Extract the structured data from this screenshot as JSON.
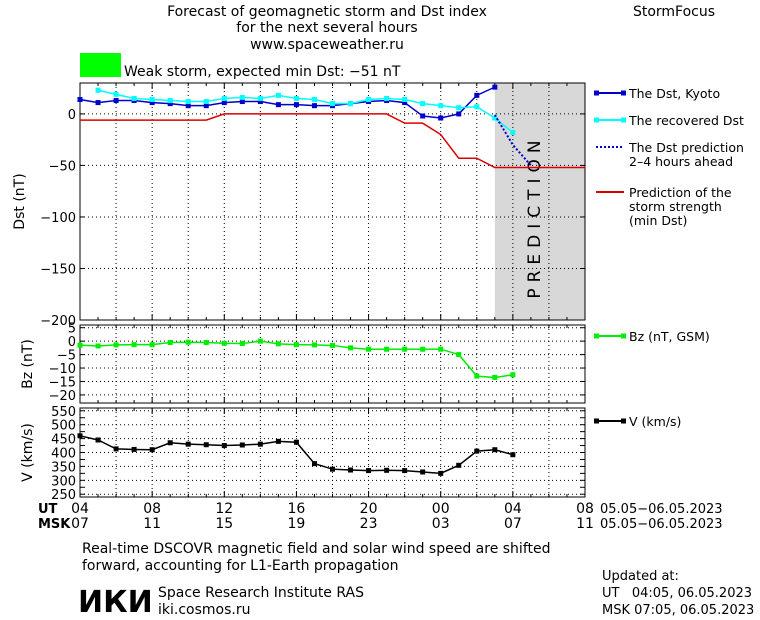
{
  "header": {
    "title_lines": [
      "Forecast of geomagnetic storm and Dst index",
      "for the next several hours",
      "www.spaceweather.ru"
    ],
    "brand": "StormFocus"
  },
  "storm_status": {
    "label": "Weak storm, expected min Dst: −51 nT",
    "color": "#00ff00"
  },
  "prediction_label": "PREDICTION",
  "colors": {
    "dst_kyoto": "#0000cc",
    "dst_recovered": "#00ffff",
    "dst_prediction": "#0000cc",
    "storm_strength": "#dd0000",
    "bz": "#00ee00",
    "v": "#000000",
    "prediction_band": "#d8d8d8"
  },
  "time_axis": {
    "ut_label": "UT",
    "msk_label": "MSK",
    "ut_ticks": [
      "04",
      "08",
      "12",
      "16",
      "20",
      "00",
      "04",
      "08"
    ],
    "msk_ticks": [
      "07",
      "11",
      "15",
      "19",
      "23",
      "03",
      "07",
      "11"
    ],
    "ut_date_range": "05.05−06.05.2023",
    "msk_date_range": "05.05−06.05.2023"
  },
  "chart_data": [
    {
      "type": "line",
      "ylabel": "Dst (nT)",
      "ylim": [
        -200,
        30
      ],
      "yticks": [
        0,
        -50,
        -100,
        -150,
        -200
      ],
      "xlim": [
        0,
        28
      ],
      "prediction_start": 23,
      "series": [
        {
          "name": "The Dst, Kyoto",
          "x": [
            0,
            1,
            2,
            3,
            4,
            5,
            6,
            7,
            8,
            9,
            10,
            11,
            12,
            13,
            14,
            15,
            16,
            17,
            18,
            19,
            20,
            21,
            22,
            23
          ],
          "values": [
            14,
            11,
            13,
            13,
            11,
            10,
            8,
            8,
            11,
            12,
            12,
            9,
            9,
            8,
            8,
            10,
            12,
            13,
            11,
            -2,
            -4,
            0,
            18,
            26
          ]
        },
        {
          "name": "The recovered Dst",
          "x": [
            1,
            2,
            3,
            4,
            5,
            6,
            7,
            8,
            9,
            10,
            11,
            12,
            13,
            14,
            15,
            16,
            17,
            18,
            19,
            20,
            21,
            22,
            23,
            24
          ],
          "values": [
            23,
            19,
            15,
            14,
            13,
            12,
            12,
            15,
            16,
            15,
            18,
            15,
            14,
            10,
            10,
            14,
            15,
            14,
            10,
            8,
            6,
            7,
            -4,
            -18
          ]
        },
        {
          "name": "The Dst prediction\n2–4 hours ahead",
          "x": [
            23,
            24,
            25
          ],
          "values": [
            -1,
            -30,
            -50
          ]
        },
        {
          "name": "Prediction of the\nstorm strength\n(min Dst)",
          "x": [
            0,
            1,
            2,
            3,
            4,
            5,
            6,
            7,
            8,
            9,
            10,
            11,
            12,
            13,
            14,
            15,
            16,
            17,
            18,
            19,
            20,
            21,
            22,
            23,
            24,
            25,
            26,
            27,
            28
          ],
          "values": [
            -6,
            -6,
            -6,
            -6,
            -6,
            -6,
            -6,
            -6,
            0,
            0,
            0,
            0,
            0,
            0,
            0,
            0,
            0,
            0,
            -9,
            -9,
            -20,
            -43,
            -43,
            -52,
            -52,
            -52,
            -52,
            -52,
            -52
          ]
        }
      ]
    },
    {
      "type": "line",
      "ylabel": "Bz (nT)",
      "ylim": [
        -23,
        6
      ],
      "yticks": [
        5,
        0,
        -5,
        -10,
        -15,
        -20
      ],
      "xlim": [
        0,
        28
      ],
      "series": [
        {
          "name": "Bz (nT, GSM)",
          "x": [
            0,
            1,
            2,
            3,
            4,
            5,
            6,
            7,
            8,
            9,
            10,
            11,
            12,
            13,
            14,
            15,
            16,
            17,
            18,
            19,
            20,
            21,
            22,
            23,
            24
          ],
          "values": [
            -1.5,
            -1.8,
            -1.4,
            -1.3,
            -1.3,
            -0.5,
            -0.4,
            -0.5,
            -0.8,
            -0.9,
            0,
            -1.0,
            -1.3,
            -1.4,
            -1.6,
            -2.5,
            -3.0,
            -3.0,
            -3.0,
            -3.0,
            -3.0,
            -5.0,
            -13.0,
            -13.5,
            -12.5
          ]
        }
      ]
    },
    {
      "type": "line",
      "ylabel": "V (km/s)",
      "ylim": [
        240,
        560
      ],
      "yticks": [
        550,
        500,
        450,
        400,
        350,
        300,
        250
      ],
      "extra_yticks": [
        525,
        475,
        425,
        375,
        325,
        275
      ],
      "xlim": [
        0,
        28
      ],
      "series": [
        {
          "name": "V (km/s)",
          "x": [
            0,
            1,
            2,
            3,
            4,
            5,
            6,
            7,
            8,
            9,
            10,
            11,
            12,
            13,
            14,
            15,
            16,
            17,
            18,
            19,
            20,
            21,
            22,
            23,
            24
          ],
          "values": [
            460,
            445,
            413,
            411,
            410,
            435,
            430,
            428,
            425,
            427,
            430,
            440,
            437,
            360,
            340,
            337,
            335,
            336,
            335,
            330,
            325,
            354,
            405,
            410,
            392
          ]
        }
      ]
    }
  ],
  "footer": {
    "note_lines": [
      "Real-time DSCOVR magnetic field and solar wind speed are shifted",
      "forward, accounting for L1-Earth propagation"
    ],
    "logo_text": "ИКИ",
    "institute": "Space Research Institute RAS",
    "website": "iki.cosmos.ru",
    "updated_label": "Updated at:",
    "updated_ut": "UT   04:05, 06.05.2023",
    "updated_msk": "MSK 07:05, 06.05.2023"
  }
}
